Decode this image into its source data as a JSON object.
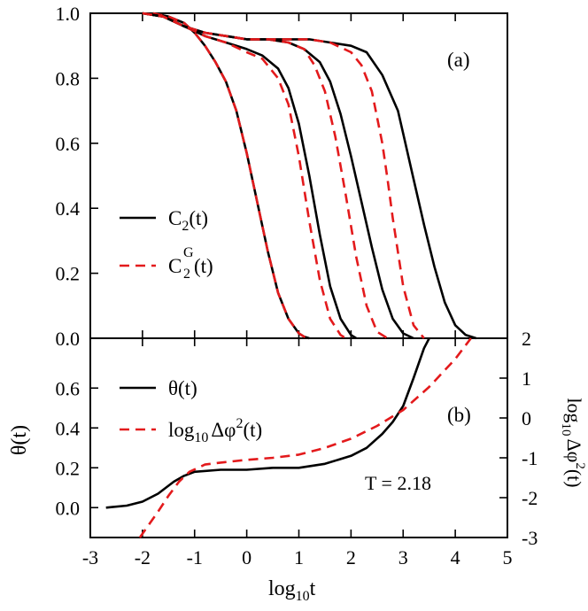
{
  "chart_data": [
    {
      "panel_label": "(a)",
      "type": "line",
      "xlim": [
        -3,
        5
      ],
      "ylim": [
        0,
        1
      ],
      "xticks": [
        "-3",
        "-2",
        "-1",
        "0",
        "1",
        "2",
        "3",
        "4",
        "5"
      ],
      "yticks": [
        "0.0",
        "0.2",
        "0.4",
        "0.6",
        "0.8",
        "1.0"
      ],
      "legend_position": "center-left",
      "legend": [
        {
          "base": "C",
          "sub": "2",
          "sup": "",
          "arg": "(t)",
          "style": "solid",
          "color": "#000000"
        },
        {
          "base": "C",
          "sub": "2",
          "sup": "G",
          "arg": "(t)",
          "style": "dashed",
          "color": "#e31a1c"
        }
      ],
      "series": [
        {
          "name": "C2(t) curve 1",
          "style": "solid",
          "color": "#000000",
          "x": [
            -1.8,
            -1.5,
            -1.2,
            -1.0,
            -0.8,
            -0.6,
            -0.4,
            -0.2,
            0.0,
            0.2,
            0.4,
            0.6,
            0.8,
            1.0,
            1.1,
            1.2
          ],
          "y": [
            1.0,
            0.99,
            0.97,
            0.94,
            0.9,
            0.85,
            0.79,
            0.7,
            0.57,
            0.42,
            0.27,
            0.14,
            0.06,
            0.015,
            0.005,
            0.0
          ]
        },
        {
          "name": "C2G(t) curve 1",
          "style": "dashed",
          "color": "#e31a1c",
          "x": [
            -1.8,
            -1.5,
            -1.2,
            -1.0,
            -0.8,
            -0.6,
            -0.4,
            -0.2,
            0.0,
            0.2,
            0.4,
            0.6,
            0.8,
            1.0,
            1.1,
            1.2
          ],
          "y": [
            1.0,
            0.99,
            0.97,
            0.94,
            0.9,
            0.85,
            0.79,
            0.7,
            0.57,
            0.42,
            0.27,
            0.14,
            0.06,
            0.015,
            0.005,
            0.0
          ]
        },
        {
          "name": "C2(t) curve 2",
          "style": "solid",
          "color": "#000000",
          "x": [
            -2.0,
            -1.6,
            -1.2,
            -0.8,
            -0.4,
            0.0,
            0.3,
            0.6,
            0.8,
            1.0,
            1.2,
            1.4,
            1.6,
            1.8,
            2.0,
            2.1
          ],
          "y": [
            1.0,
            0.99,
            0.96,
            0.93,
            0.91,
            0.89,
            0.87,
            0.83,
            0.77,
            0.66,
            0.5,
            0.32,
            0.16,
            0.06,
            0.01,
            0.0
          ]
        },
        {
          "name": "C2G(t) curve 2",
          "style": "dashed",
          "color": "#e31a1c",
          "x": [
            -2.0,
            -1.6,
            -1.2,
            -0.8,
            -0.4,
            0.0,
            0.3,
            0.6,
            0.8,
            1.0,
            1.2,
            1.4,
            1.6,
            1.8,
            1.9
          ],
          "y": [
            1.0,
            0.99,
            0.96,
            0.93,
            0.91,
            0.88,
            0.86,
            0.8,
            0.72,
            0.56,
            0.36,
            0.18,
            0.06,
            0.01,
            0.0
          ]
        },
        {
          "name": "C2(t) curve 3",
          "style": "solid",
          "color": "#000000",
          "x": [
            -2.0,
            -1.6,
            -1.2,
            -0.8,
            -0.4,
            0.0,
            0.4,
            0.8,
            1.1,
            1.4,
            1.6,
            1.8,
            2.0,
            2.2,
            2.4,
            2.6,
            2.8,
            3.0,
            3.2
          ],
          "y": [
            1.0,
            0.99,
            0.96,
            0.94,
            0.93,
            0.92,
            0.92,
            0.91,
            0.89,
            0.85,
            0.79,
            0.69,
            0.56,
            0.42,
            0.28,
            0.15,
            0.06,
            0.015,
            0.0
          ]
        },
        {
          "name": "C2G(t) curve 3",
          "style": "dashed",
          "color": "#e31a1c",
          "x": [
            -2.0,
            -1.6,
            -1.2,
            -0.8,
            -0.4,
            0.0,
            0.4,
            0.8,
            1.1,
            1.3,
            1.5,
            1.7,
            1.9,
            2.1,
            2.3,
            2.5,
            2.7
          ],
          "y": [
            1.0,
            0.99,
            0.96,
            0.94,
            0.93,
            0.92,
            0.92,
            0.91,
            0.89,
            0.84,
            0.76,
            0.62,
            0.44,
            0.25,
            0.1,
            0.02,
            0.0
          ]
        },
        {
          "name": "C2(t) curve 4",
          "style": "solid",
          "color": "#000000",
          "x": [
            -2.0,
            -1.6,
            -1.2,
            -0.8,
            -0.4,
            0.0,
            0.4,
            0.8,
            1.2,
            1.6,
            2.0,
            2.3,
            2.6,
            2.9,
            3.0,
            3.2,
            3.4,
            3.6,
            3.8,
            4.0,
            4.2,
            4.4
          ],
          "y": [
            1.0,
            0.99,
            0.96,
            0.94,
            0.93,
            0.92,
            0.92,
            0.92,
            0.92,
            0.91,
            0.9,
            0.88,
            0.81,
            0.7,
            0.63,
            0.49,
            0.35,
            0.22,
            0.11,
            0.04,
            0.01,
            0.0
          ]
        },
        {
          "name": "C2G(t) curve 4",
          "style": "dashed",
          "color": "#e31a1c",
          "x": [
            -2.0,
            -1.6,
            -1.2,
            -0.8,
            -0.4,
            0.0,
            0.4,
            0.8,
            1.2,
            1.6,
            2.0,
            2.2,
            2.4,
            2.6,
            2.7,
            2.8,
            3.0,
            3.2,
            3.4
          ],
          "y": [
            1.0,
            0.99,
            0.96,
            0.94,
            0.93,
            0.92,
            0.92,
            0.92,
            0.92,
            0.91,
            0.88,
            0.84,
            0.76,
            0.6,
            0.49,
            0.37,
            0.16,
            0.04,
            0.0
          ]
        }
      ]
    },
    {
      "panel_label": "(b)",
      "type": "line",
      "xlim": [
        -3,
        5
      ],
      "ylim_left": [
        -0.15,
        0.85
      ],
      "ylim_right": [
        -3,
        2
      ],
      "xticks": [
        "-3",
        "-2",
        "-1",
        "0",
        "1",
        "2",
        "3",
        "4",
        "5"
      ],
      "yticks_left": [
        "0.0",
        "0.2",
        "0.4",
        "0.6"
      ],
      "yticks_right": [
        "-3",
        "-2",
        "-1",
        "0",
        "1",
        "2"
      ],
      "xlabel": {
        "prefix": "log",
        "sub": "10",
        "suffix": "t"
      },
      "ylabel_left": "θ(t)",
      "ylabel_right": {
        "prefix": "log",
        "sub": "10",
        "mid": "Δφ",
        "sup": "2",
        "suffix": "(t)"
      },
      "legend_position": "top-left",
      "legend": [
        {
          "text": "θ(t)",
          "style": "solid",
          "color": "#000000"
        },
        {
          "prefix": "log",
          "sub": "10",
          "mid": "Δφ",
          "sup": "2",
          "suffix": "(t)",
          "style": "dashed",
          "color": "#e31a1c"
        }
      ],
      "annotation": "T = 2.18",
      "series": [
        {
          "name": "θ(t)",
          "axis": "left",
          "style": "solid",
          "color": "#000000",
          "x": [
            -2.7,
            -2.3,
            -2.0,
            -1.7,
            -1.4,
            -1.2,
            -1.0,
            -0.5,
            0.0,
            0.5,
            1.0,
            1.5,
            2.0,
            2.3,
            2.6,
            2.8,
            3.0,
            3.2,
            3.4,
            3.5
          ],
          "y": [
            0.0,
            0.01,
            0.03,
            0.07,
            0.13,
            0.16,
            0.18,
            0.19,
            0.19,
            0.2,
            0.2,
            0.22,
            0.26,
            0.3,
            0.37,
            0.43,
            0.51,
            0.65,
            0.8,
            0.85
          ]
        },
        {
          "name": "log10 Δφ²(t)",
          "axis": "right",
          "style": "dashed",
          "color": "#e31a1c",
          "x": [
            -2.05,
            -1.9,
            -1.7,
            -1.5,
            -1.3,
            -1.1,
            -0.8,
            -0.5,
            0.0,
            0.5,
            1.0,
            1.5,
            2.0,
            2.5,
            3.0,
            3.5,
            4.0,
            4.3
          ],
          "y": [
            -3.0,
            -2.72,
            -2.35,
            -1.95,
            -1.6,
            -1.35,
            -1.17,
            -1.12,
            -1.05,
            -1.0,
            -0.92,
            -0.75,
            -0.52,
            -0.2,
            0.2,
            0.78,
            1.48,
            2.0
          ]
        }
      ]
    }
  ]
}
